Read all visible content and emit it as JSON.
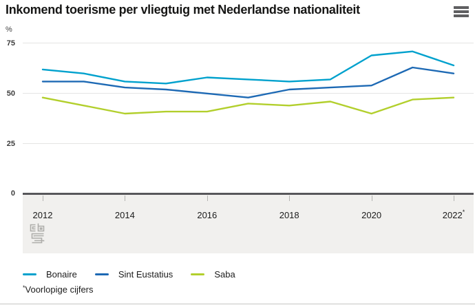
{
  "header": {
    "title": "Inkomend toerisme per vliegtuig met Nederlandse nationaliteit"
  },
  "chart_data": {
    "type": "line",
    "title": "Inkomend toerisme per vliegtuig met Nederlandse nationaliteit",
    "unit_label": "%",
    "xlabel": "",
    "ylabel": "%",
    "ylim": [
      0,
      78
    ],
    "grid": true,
    "legend_position": "bottom",
    "years": [
      2012,
      2013,
      2014,
      2015,
      2016,
      2017,
      2018,
      2019,
      2020,
      2021,
      2022
    ],
    "y_tick_labels": [
      "75",
      "50",
      "25",
      "0"
    ],
    "y_ticks": [
      75,
      50,
      25,
      0
    ],
    "x_ticks": [
      {
        "label": "2012"
      },
      {
        "label": "2014"
      },
      {
        "label": "2016"
      },
      {
        "label": "2018"
      },
      {
        "label": "2020"
      },
      {
        "label": "2022",
        "sup": "*"
      }
    ],
    "series": [
      {
        "name": "Bonaire",
        "color": "#00a1cd",
        "values": [
          62,
          60,
          56,
          55,
          58,
          57,
          56,
          57,
          69,
          71,
          64
        ]
      },
      {
        "name": "Sint Eustatius",
        "color": "#1d69b4",
        "values": [
          56,
          56,
          53,
          52,
          50,
          48,
          52,
          53,
          54,
          63,
          60
        ]
      },
      {
        "name": "Saba",
        "color": "#b2cf2c",
        "values": [
          48,
          44,
          40,
          41,
          41,
          45,
          44,
          46,
          40,
          47,
          48
        ]
      }
    ],
    "footnote": "*Voorlopige cijfers"
  },
  "footer": {
    "footnote_marker": "*",
    "footnote_text": "Voorlopige cijfers"
  },
  "colors": {
    "axis": "#57575a",
    "gridline": "#e4e4e3",
    "panel_background": "#f1f0ee",
    "menu_icon": "#5f5f61",
    "logo": "#aeadaa"
  }
}
